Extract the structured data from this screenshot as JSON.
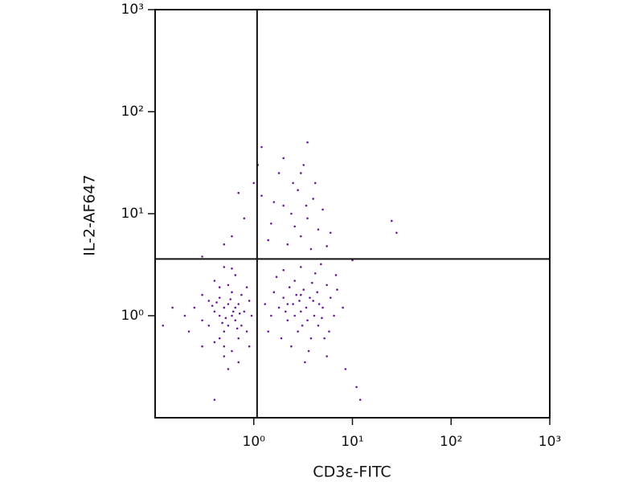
{
  "chart_data": {
    "type": "scatter",
    "xlabel": "CD3ε-FITC",
    "ylabel": "IL-2-AF647",
    "xscale": "log",
    "yscale": "log",
    "xlim": [
      0.1,
      1000
    ],
    "ylim": [
      0.1,
      1000
    ],
    "xticks": [
      {
        "value": 1,
        "label": "10⁰"
      },
      {
        "value": 10,
        "label": "10¹"
      },
      {
        "value": 100,
        "label": "10²"
      },
      {
        "value": 1000,
        "label": "10³"
      }
    ],
    "yticks": [
      {
        "value": 1,
        "label": "10⁰"
      },
      {
        "value": 10,
        "label": "10¹"
      },
      {
        "value": 100,
        "label": "10²"
      },
      {
        "value": 1000,
        "label": "10³"
      }
    ],
    "gates": {
      "x": 1.08,
      "y": 3.6
    },
    "color": "#6a1b9a",
    "x": [
      0.5,
      0.6,
      0.45,
      0.55,
      0.7,
      0.4,
      0.65,
      0.5,
      0.35,
      0.8,
      0.6,
      0.45,
      0.75,
      0.55,
      0.3,
      0.9,
      0.5,
      0.65,
      0.4,
      0.7,
      0.25,
      0.85,
      0.55,
      0.6,
      0.35,
      0.95,
      0.45,
      0.5,
      0.75,
      0.3,
      0.2,
      0.65,
      0.4,
      0.85,
      0.5,
      0.7,
      0.55,
      0.3,
      0.9,
      0.6,
      0.22,
      0.45,
      0.62,
      0.52,
      0.38,
      0.72,
      0.58,
      0.48,
      0.68,
      0.42,
      2.5,
      3.0,
      2.0,
      3.5,
      4.0,
      2.8,
      1.8,
      5.0,
      3.2,
      2.2,
      4.5,
      1.5,
      6.0,
      2.6,
      3.8,
      1.6,
      5.5,
      2.4,
      4.2,
      3.0,
      1.4,
      6.5,
      2.0,
      7.0,
      3.6,
      5.2,
      1.7,
      4.8,
      2.9,
      3.4,
      2.1,
      4.1,
      3.1,
      2.7,
      5.8,
      1.9,
      6.8,
      8.0,
      4.4,
      2.3,
      3.3,
      5.5,
      1.3,
      3.9,
      2.6,
      4.6,
      3.7,
      2.2,
      3.0,
      4.9,
      1.2,
      1.5,
      2.0,
      2.5,
      3.0,
      3.5,
      4.0,
      1.8,
      2.2,
      4.5,
      5.0,
      3.2,
      2.8,
      1.4,
      6.0,
      2.4,
      3.8,
      1.1,
      2.0,
      4.2,
      5.5,
      1.6,
      3.0,
      2.6,
      3.4,
      0.8,
      0.6,
      0.7,
      0.5,
      1.0,
      1.2,
      3.5,
      25,
      28,
      12,
      11,
      0.15,
      0.12,
      0.4,
      8.5,
      10,
      0.3
    ],
    "values": [
      1.2,
      1.0,
      1.5,
      0.8,
      1.3,
      1.1,
      0.9,
      0.7,
      1.4,
      1.1,
      1.7,
      0.6,
      0.8,
      2.0,
      0.9,
      1.4,
      0.5,
      1.2,
      2.2,
      0.6,
      1.2,
      0.7,
      1.3,
      0.45,
      0.8,
      1.0,
      1.9,
      0.4,
      1.6,
      1.6,
      1.0,
      2.5,
      0.55,
      1.9,
      3.0,
      0.35,
      0.3,
      0.5,
      0.5,
      2.9,
      0.7,
      1.0,
      1.1,
      0.95,
      1.25,
      1.05,
      1.45,
      0.85,
      0.75,
      1.35,
      1.3,
      1.1,
      1.5,
      0.9,
      1.4,
      0.7,
      1.2,
      1.2,
      1.8,
      0.9,
      0.8,
      1.0,
      1.5,
      2.2,
      0.6,
      1.7,
      2.0,
      0.5,
      2.6,
      3.0,
      0.7,
      1.0,
      2.8,
      1.8,
      0.45,
      0.6,
      2.4,
      3.2,
      1.4,
      1.2,
      1.1,
      1.0,
      0.8,
      1.6,
      0.7,
      0.6,
      2.5,
      1.2,
      1.7,
      1.9,
      0.35,
      0.4,
      1.3,
      2.1,
      1.0,
      1.3,
      1.5,
      1.3,
      1.6,
      0.95,
      15,
      8,
      12,
      20,
      6,
      9,
      14,
      25,
      5,
      7,
      11,
      30,
      17,
      5.5,
      6.5,
      10,
      4.5,
      30,
      35,
      20,
      4.8,
      13,
      25,
      7.5,
      12,
      9,
      6,
      16,
      5,
      20,
      45,
      50,
      8.5,
      6.5,
      0.15,
      0.2,
      1.2,
      0.8,
      0.15,
      0.3,
      3.5,
      3.8
    ]
  }
}
